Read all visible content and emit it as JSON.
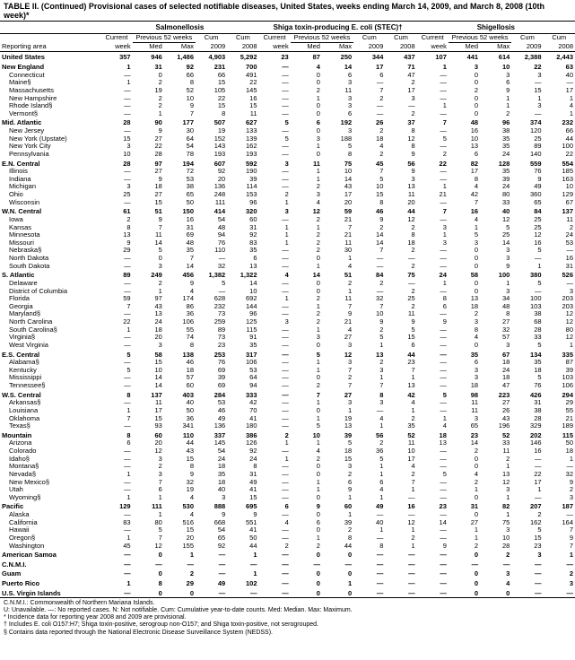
{
  "title": "TABLE II. (Continued) Provisional cases of selected notifiable diseases, United States, weeks ending March 14, 2009, and March 8, 2008 (10th week)*",
  "diseases": [
    "Salmonellosis",
    "Shiga toxin-producing E. coli (STEC)†",
    "Shigellosis"
  ],
  "group_labels": {
    "current": "Current",
    "previous": "Previous 52 weeks",
    "cum": "Cum",
    "cum2": "Cum"
  },
  "cols": [
    "Reporting area",
    "week",
    "Med",
    "Max",
    "2009",
    "2008",
    "week",
    "Med",
    "Max",
    "2009",
    "2008",
    "week",
    "Med",
    "Max",
    "2009",
    "2008"
  ],
  "footnotes": [
    "C.N.M.I.: Commonwealth of Northern Mariana Islands.",
    "U: Unavailable.    —: No reported cases.    N: Not notifiable.    Cum: Cumulative year-to-date counts.    Med: Median.    Max: Maximum.",
    "* Incidence data for reporting year 2008 and 2009 are provisional.",
    "† Includes E. coli O157:H7; Shiga toxin-positive, serogroup non-O157; and Shiga toxin-positive, not serogrouped.",
    "§ Contains data reported through the National Electronic Disease Surveillance System (NEDSS)."
  ],
  "style": {
    "bg": "#ffffff",
    "fg": "#000000",
    "font_body": 7.5,
    "font_title": 9,
    "font_disease": 8,
    "font_foot": 7
  },
  "rows": [
    {
      "r": 1,
      "c": [
        "United States",
        "357",
        "946",
        "1,486",
        "4,903",
        "5,292",
        "23",
        "87",
        "250",
        "344",
        "437",
        "107",
        "441",
        "614",
        "2,388",
        "2,443"
      ]
    },
    {
      "r": 1,
      "c": [
        "New England",
        "1",
        "31",
        "92",
        "231",
        "700",
        "—",
        "4",
        "14",
        "17",
        "71",
        "1",
        "3",
        "10",
        "22",
        "63"
      ]
    },
    {
      "c": [
        "Connecticut",
        "—",
        "0",
        "66",
        "66",
        "491",
        "—",
        "0",
        "6",
        "6",
        "47",
        "—",
        "0",
        "3",
        "3",
        "40"
      ]
    },
    {
      "c": [
        "Maine§",
        "1",
        "2",
        "8",
        "15",
        "22",
        "—",
        "0",
        "3",
        "—",
        "2",
        "—",
        "0",
        "6",
        "—",
        "—"
      ]
    },
    {
      "c": [
        "Massachusetts",
        "—",
        "19",
        "52",
        "105",
        "145",
        "—",
        "2",
        "11",
        "7",
        "17",
        "—",
        "2",
        "9",
        "15",
        "17"
      ]
    },
    {
      "c": [
        "New Hampshire",
        "—",
        "2",
        "10",
        "22",
        "16",
        "—",
        "1",
        "3",
        "2",
        "3",
        "—",
        "0",
        "1",
        "1",
        "1"
      ]
    },
    {
      "c": [
        "Rhode Island§",
        "—",
        "2",
        "9",
        "15",
        "15",
        "—",
        "0",
        "3",
        "—",
        "—",
        "1",
        "0",
        "1",
        "3",
        "4"
      ]
    },
    {
      "c": [
        "Vermont§",
        "—",
        "1",
        "7",
        "8",
        "11",
        "—",
        "0",
        "6",
        "—",
        "2",
        "—",
        "0",
        "2",
        "—",
        "1"
      ]
    },
    {
      "r": 1,
      "c": [
        "Mid. Atlantic",
        "28",
        "90",
        "177",
        "507",
        "627",
        "5",
        "6",
        "192",
        "26",
        "37",
        "7",
        "48",
        "96",
        "374",
        "232"
      ]
    },
    {
      "c": [
        "New Jersey",
        "—",
        "9",
        "30",
        "19",
        "133",
        "—",
        "0",
        "3",
        "2",
        "8",
        "—",
        "16",
        "38",
        "120",
        "66"
      ]
    },
    {
      "c": [
        "New York (Upstate)",
        "15",
        "27",
        "64",
        "152",
        "139",
        "5",
        "3",
        "188",
        "18",
        "12",
        "5",
        "10",
        "35",
        "25",
        "44"
      ]
    },
    {
      "c": [
        "New York City",
        "3",
        "22",
        "54",
        "143",
        "162",
        "—",
        "1",
        "5",
        "4",
        "8",
        "—",
        "13",
        "35",
        "89",
        "100"
      ]
    },
    {
      "c": [
        "Pennsylvania",
        "10",
        "28",
        "78",
        "193",
        "193",
        "—",
        "0",
        "8",
        "2",
        "9",
        "2",
        "6",
        "24",
        "140",
        "22"
      ]
    },
    {
      "r": 1,
      "c": [
        "E.N. Central",
        "28",
        "97",
        "194",
        "607",
        "592",
        "3",
        "11",
        "75",
        "45",
        "56",
        "22",
        "82",
        "128",
        "559",
        "554"
      ]
    },
    {
      "c": [
        "Illinois",
        "—",
        "27",
        "72",
        "92",
        "190",
        "—",
        "1",
        "10",
        "7",
        "9",
        "—",
        "17",
        "35",
        "76",
        "185"
      ]
    },
    {
      "c": [
        "Indiana",
        "—",
        "9",
        "53",
        "20",
        "39",
        "—",
        "1",
        "14",
        "5",
        "3",
        "—",
        "8",
        "39",
        "9",
        "163"
      ]
    },
    {
      "c": [
        "Michigan",
        "3",
        "18",
        "38",
        "136",
        "114",
        "—",
        "2",
        "43",
        "10",
        "13",
        "1",
        "4",
        "24",
        "49",
        "10"
      ]
    },
    {
      "c": [
        "Ohio",
        "25",
        "27",
        "65",
        "248",
        "153",
        "2",
        "3",
        "17",
        "15",
        "11",
        "21",
        "42",
        "80",
        "360",
        "129"
      ]
    },
    {
      "c": [
        "Wisconsin",
        "—",
        "15",
        "50",
        "111",
        "96",
        "1",
        "4",
        "20",
        "8",
        "20",
        "—",
        "7",
        "33",
        "65",
        "67"
      ]
    },
    {
      "r": 1,
      "c": [
        "W.N. Central",
        "61",
        "51",
        "150",
        "414",
        "320",
        "3",
        "12",
        "59",
        "46",
        "44",
        "7",
        "16",
        "40",
        "84",
        "137"
      ]
    },
    {
      "c": [
        "Iowa",
        "2",
        "9",
        "16",
        "54",
        "60",
        "—",
        "2",
        "21",
        "9",
        "12",
        "—",
        "4",
        "12",
        "25",
        "11"
      ]
    },
    {
      "c": [
        "Kansas",
        "8",
        "7",
        "31",
        "48",
        "31",
        "1",
        "1",
        "7",
        "2",
        "2",
        "3",
        "1",
        "5",
        "25",
        "2"
      ]
    },
    {
      "c": [
        "Minnesota",
        "13",
        "11",
        "69",
        "94",
        "92",
        "1",
        "2",
        "21",
        "14",
        "8",
        "1",
        "5",
        "25",
        "12",
        "24"
      ]
    },
    {
      "c": [
        "Missouri",
        "9",
        "14",
        "48",
        "76",
        "83",
        "1",
        "2",
        "11",
        "14",
        "18",
        "3",
        "3",
        "14",
        "16",
        "53"
      ]
    },
    {
      "c": [
        "Nebraska§",
        "29",
        "5",
        "35",
        "110",
        "35",
        "—",
        "2",
        "30",
        "7",
        "2",
        "—",
        "0",
        "3",
        "5",
        "—"
      ]
    },
    {
      "c": [
        "North Dakota",
        "—",
        "0",
        "7",
        "—",
        "6",
        "—",
        "0",
        "1",
        "—",
        "—",
        "—",
        "0",
        "3",
        "—",
        "16"
      ]
    },
    {
      "c": [
        "South Dakota",
        "—",
        "3",
        "14",
        "32",
        "13",
        "—",
        "1",
        "4",
        "—",
        "2",
        "—",
        "0",
        "9",
        "1",
        "31"
      ]
    },
    {
      "r": 1,
      "c": [
        "S. Atlantic",
        "89",
        "249",
        "456",
        "1,382",
        "1,322",
        "4",
        "14",
        "51",
        "84",
        "75",
        "24",
        "58",
        "100",
        "380",
        "526"
      ]
    },
    {
      "c": [
        "Delaware",
        "—",
        "2",
        "9",
        "5",
        "14",
        "—",
        "0",
        "2",
        "2",
        "—",
        "1",
        "0",
        "1",
        "5",
        "—"
      ]
    },
    {
      "c": [
        "District of Columbia",
        "—",
        "1",
        "4",
        "—",
        "10",
        "—",
        "0",
        "1",
        "—",
        "2",
        "—",
        "0",
        "3",
        "—",
        "3"
      ]
    },
    {
      "c": [
        "Florida",
        "59",
        "97",
        "174",
        "628",
        "692",
        "1",
        "2",
        "11",
        "32",
        "25",
        "8",
        "13",
        "34",
        "100",
        "203"
      ]
    },
    {
      "c": [
        "Georgia",
        "7",
        "43",
        "86",
        "232",
        "144",
        "—",
        "1",
        "7",
        "7",
        "2",
        "6",
        "18",
        "48",
        "103",
        "203"
      ]
    },
    {
      "c": [
        "Maryland§",
        "—",
        "13",
        "36",
        "73",
        "96",
        "—",
        "2",
        "9",
        "10",
        "11",
        "—",
        "2",
        "8",
        "38",
        "12"
      ]
    },
    {
      "c": [
        "North Carolina",
        "22",
        "24",
        "106",
        "259",
        "125",
        "3",
        "2",
        "21",
        "9",
        "9",
        "9",
        "3",
        "27",
        "68",
        "12"
      ]
    },
    {
      "c": [
        "South Carolina§",
        "1",
        "18",
        "55",
        "89",
        "115",
        "—",
        "1",
        "4",
        "2",
        "5",
        "—",
        "8",
        "32",
        "28",
        "80"
      ]
    },
    {
      "c": [
        "Virginia§",
        "—",
        "20",
        "74",
        "73",
        "91",
        "—",
        "3",
        "27",
        "5",
        "15",
        "—",
        "4",
        "57",
        "33",
        "12"
      ]
    },
    {
      "c": [
        "West Virginia",
        "—",
        "3",
        "8",
        "23",
        "35",
        "—",
        "0",
        "3",
        "1",
        "6",
        "—",
        "0",
        "3",
        "5",
        "1"
      ]
    },
    {
      "r": 1,
      "c": [
        "E.S. Central",
        "5",
        "58",
        "138",
        "253",
        "317",
        "—",
        "5",
        "12",
        "13",
        "44",
        "—",
        "35",
        "67",
        "134",
        "335"
      ]
    },
    {
      "c": [
        "Alabama§",
        "—",
        "15",
        "46",
        "76",
        "106",
        "—",
        "1",
        "3",
        "2",
        "23",
        "—",
        "6",
        "18",
        "35",
        "87"
      ]
    },
    {
      "c": [
        "Kentucky",
        "5",
        "10",
        "18",
        "69",
        "53",
        "—",
        "1",
        "7",
        "3",
        "7",
        "—",
        "3",
        "24",
        "18",
        "39"
      ]
    },
    {
      "c": [
        "Mississippi",
        "—",
        "14",
        "57",
        "39",
        "64",
        "—",
        "0",
        "2",
        "1",
        "1",
        "—",
        "3",
        "18",
        "5",
        "103"
      ]
    },
    {
      "c": [
        "Tennessee§",
        "—",
        "14",
        "60",
        "69",
        "94",
        "—",
        "2",
        "7",
        "7",
        "13",
        "—",
        "18",
        "47",
        "76",
        "106"
      ]
    },
    {
      "r": 1,
      "c": [
        "W.S. Central",
        "8",
        "137",
        "403",
        "284",
        "333",
        "—",
        "7",
        "27",
        "8",
        "42",
        "5",
        "98",
        "223",
        "426",
        "294"
      ]
    },
    {
      "c": [
        "Arkansas§",
        "—",
        "11",
        "40",
        "53",
        "42",
        "—",
        "1",
        "3",
        "3",
        "4",
        "—",
        "11",
        "27",
        "31",
        "29"
      ]
    },
    {
      "c": [
        "Louisiana",
        "1",
        "17",
        "50",
        "46",
        "70",
        "—",
        "0",
        "1",
        "—",
        "1",
        "—",
        "11",
        "26",
        "38",
        "55"
      ]
    },
    {
      "c": [
        "Oklahoma",
        "7",
        "15",
        "36",
        "49",
        "41",
        "—",
        "1",
        "19",
        "4",
        "2",
        "1",
        "3",
        "43",
        "28",
        "21"
      ]
    },
    {
      "c": [
        "Texas§",
        "—",
        "93",
        "341",
        "136",
        "180",
        "—",
        "5",
        "13",
        "1",
        "35",
        "4",
        "65",
        "196",
        "329",
        "189"
      ]
    },
    {
      "r": 1,
      "c": [
        "Mountain",
        "8",
        "60",
        "110",
        "337",
        "386",
        "2",
        "10",
        "39",
        "56",
        "52",
        "18",
        "23",
        "52",
        "202",
        "115"
      ]
    },
    {
      "c": [
        "Arizona",
        "6",
        "20",
        "44",
        "145",
        "126",
        "1",
        "1",
        "5",
        "2",
        "11",
        "13",
        "14",
        "33",
        "146",
        "50"
      ]
    },
    {
      "c": [
        "Colorado",
        "—",
        "12",
        "43",
        "54",
        "92",
        "—",
        "4",
        "18",
        "36",
        "10",
        "—",
        "2",
        "11",
        "16",
        "18"
      ]
    },
    {
      "c": [
        "Idaho§",
        "—",
        "3",
        "15",
        "24",
        "24",
        "1",
        "2",
        "15",
        "5",
        "17",
        "—",
        "0",
        "2",
        "—",
        "1"
      ]
    },
    {
      "c": [
        "Montana§",
        "—",
        "2",
        "8",
        "18",
        "8",
        "—",
        "0",
        "3",
        "1",
        "4",
        "—",
        "0",
        "1",
        "—",
        "—"
      ]
    },
    {
      "c": [
        "Nevada§",
        "1",
        "3",
        "9",
        "35",
        "31",
        "—",
        "0",
        "2",
        "1",
        "2",
        "5",
        "4",
        "13",
        "22",
        "32"
      ]
    },
    {
      "c": [
        "New Mexico§",
        "—",
        "7",
        "32",
        "18",
        "49",
        "—",
        "1",
        "6",
        "6",
        "7",
        "—",
        "2",
        "12",
        "17",
        "9"
      ]
    },
    {
      "c": [
        "Utah",
        "—",
        "6",
        "19",
        "40",
        "41",
        "—",
        "1",
        "9",
        "4",
        "1",
        "—",
        "1",
        "3",
        "1",
        "2"
      ]
    },
    {
      "c": [
        "Wyoming§",
        "1",
        "1",
        "4",
        "3",
        "15",
        "—",
        "0",
        "1",
        "1",
        "—",
        "—",
        "0",
        "1",
        "—",
        "3"
      ]
    },
    {
      "r": 1,
      "c": [
        "Pacific",
        "129",
        "111",
        "530",
        "888",
        "695",
        "6",
        "9",
        "60",
        "49",
        "16",
        "23",
        "31",
        "82",
        "207",
        "187"
      ]
    },
    {
      "c": [
        "Alaska",
        "—",
        "1",
        "4",
        "9",
        "9",
        "—",
        "0",
        "1",
        "—",
        "—",
        "—",
        "0",
        "1",
        "2",
        "—"
      ]
    },
    {
      "c": [
        "California",
        "83",
        "80",
        "516",
        "668",
        "551",
        "4",
        "6",
        "39",
        "40",
        "12",
        "14",
        "27",
        "75",
        "162",
        "164"
      ]
    },
    {
      "c": [
        "Hawaii",
        "—",
        "5",
        "15",
        "54",
        "41",
        "—",
        "0",
        "2",
        "1",
        "1",
        "—",
        "1",
        "3",
        "5",
        "7"
      ]
    },
    {
      "c": [
        "Oregon§",
        "1",
        "7",
        "20",
        "65",
        "50",
        "—",
        "1",
        "8",
        "—",
        "2",
        "—",
        "1",
        "10",
        "15",
        "9"
      ]
    },
    {
      "c": [
        "Washington",
        "45",
        "12",
        "155",
        "92",
        "44",
        "2",
        "2",
        "44",
        "8",
        "1",
        "9",
        "2",
        "28",
        "23",
        "7"
      ]
    },
    {
      "r": 1,
      "c": [
        "American Samoa",
        "—",
        "0",
        "1",
        "—",
        "1",
        "—",
        "0",
        "0",
        "—",
        "—",
        "—",
        "0",
        "2",
        "3",
        "1"
      ]
    },
    {
      "r": 1,
      "c": [
        "C.N.M.I.",
        "—",
        "—",
        "—",
        "—",
        "—",
        "—",
        "—",
        "—",
        "—",
        "—",
        "—",
        "—",
        "—",
        "—",
        "—"
      ]
    },
    {
      "r": 1,
      "c": [
        "Guam",
        "—",
        "0",
        "2",
        "—",
        "1",
        "—",
        "0",
        "0",
        "—",
        "—",
        "—",
        "0",
        "3",
        "—",
        "2"
      ]
    },
    {
      "r": 1,
      "c": [
        "Puerto Rico",
        "1",
        "8",
        "29",
        "49",
        "102",
        "—",
        "0",
        "1",
        "—",
        "—",
        "—",
        "0",
        "4",
        "—",
        "3"
      ]
    },
    {
      "r": 1,
      "c": [
        "U.S. Virgin Islands",
        "—",
        "0",
        "0",
        "—",
        "—",
        "—",
        "0",
        "0",
        "—",
        "—",
        "—",
        "0",
        "0",
        "—",
        "—"
      ]
    }
  ]
}
